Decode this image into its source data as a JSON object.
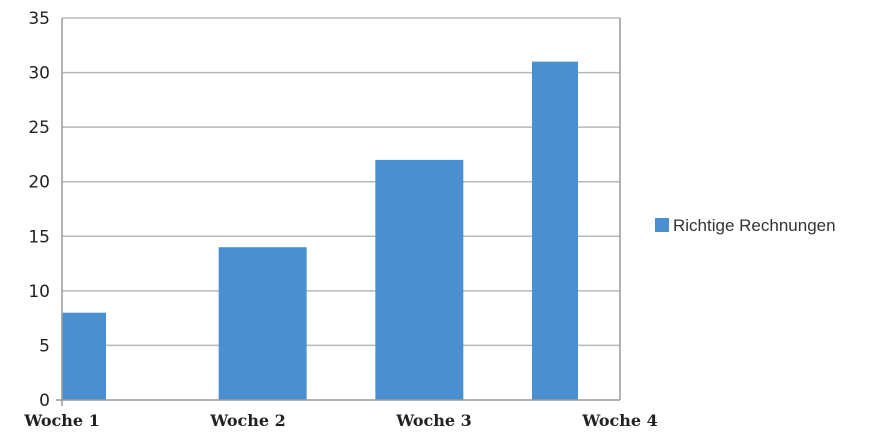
{
  "chart_data": {
    "type": "bar",
    "categories": [
      "Woche 1",
      "Woche 2",
      "Woche 3",
      "Woche 4"
    ],
    "series": [
      {
        "name": "Richtige Rechnungen",
        "values": [
          8,
          14,
          22,
          31
        ],
        "color": "#4A90D0"
      }
    ],
    "title": "",
    "xlabel": "",
    "ylabel": "",
    "ylim": [
      0,
      35
    ],
    "yticks": [
      0,
      5,
      10,
      15,
      20,
      25,
      30,
      35
    ],
    "grid": true,
    "legend": "right",
    "grid_color": "#b8b8b8",
    "axis_color": "#9a9a9a"
  }
}
